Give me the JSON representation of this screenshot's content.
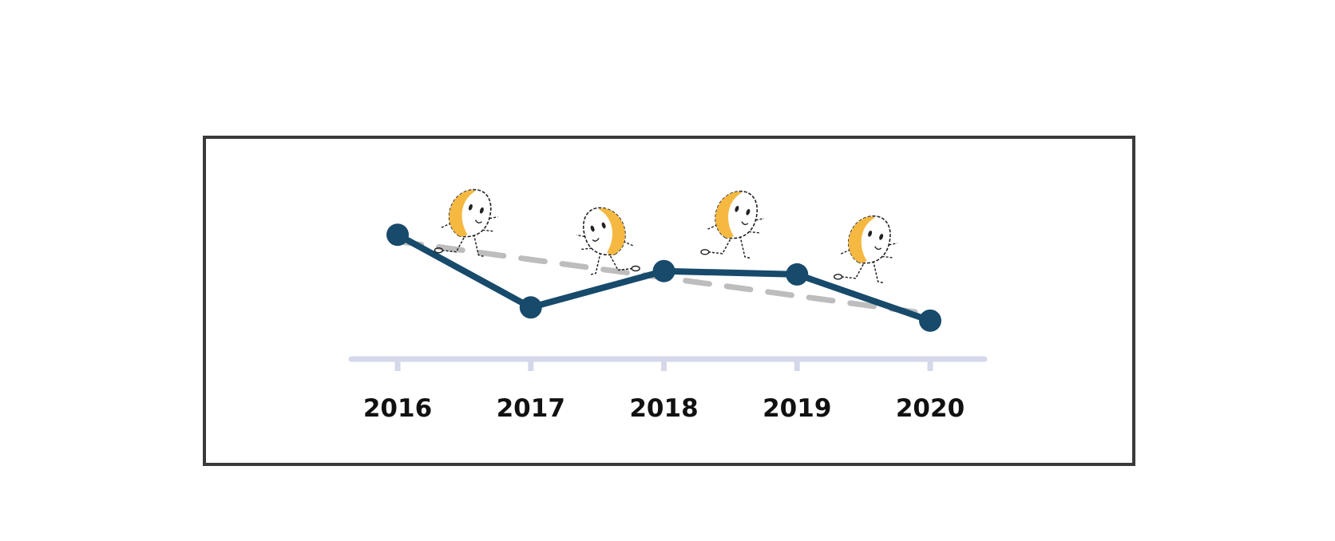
{
  "chart_data": {
    "type": "line",
    "title": "",
    "xlabel": "",
    "ylabel": "",
    "categories": [
      "2016",
      "2017",
      "2018",
      "2019",
      "2020"
    ],
    "series": [
      {
        "values": [
          70,
          48,
          59,
          58,
          44
        ]
      }
    ],
    "trend": {
      "values": [
        68,
        62.5,
        57,
        51.5,
        46
      ]
    },
    "ylim": [
      0,
      100
    ],
    "grid": false,
    "legend": "none",
    "colors": {
      "line": "#174a6b",
      "trend": "#bdbdbd",
      "axis": "#d5d8ea",
      "figure_fill": "#f5b841",
      "figure_outline": "#222222"
    },
    "decorations": [
      "runner-figure",
      "runner-figure",
      "runner-figure",
      "runner-figure"
    ]
  }
}
